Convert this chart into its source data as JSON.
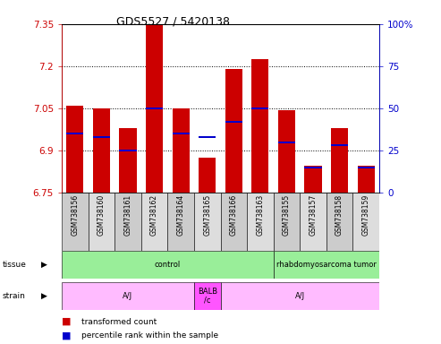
{
  "title": "GDS5527 / 5420138",
  "samples": [
    "GSM738156",
    "GSM738160",
    "GSM738161",
    "GSM738162",
    "GSM738164",
    "GSM738165",
    "GSM738166",
    "GSM738163",
    "GSM738155",
    "GSM738157",
    "GSM738158",
    "GSM738159"
  ],
  "bar_values": [
    7.06,
    7.05,
    6.98,
    7.35,
    7.05,
    6.875,
    7.19,
    7.225,
    7.045,
    6.845,
    6.98,
    6.845
  ],
  "percentile_values": [
    35,
    33,
    25,
    50,
    35,
    33,
    42,
    50,
    30,
    15,
    28,
    15
  ],
  "ymin": 6.75,
  "ymax": 7.35,
  "yticks": [
    6.75,
    6.9,
    7.05,
    7.2,
    7.35
  ],
  "ytick_labels": [
    "6.75",
    "6.9",
    "7.05",
    "7.2",
    "7.35"
  ],
  "y2ticks": [
    0,
    25,
    50,
    75,
    100
  ],
  "y2tick_labels": [
    "0",
    "25",
    "50",
    "75",
    "100%"
  ],
  "bar_color": "#cc0000",
  "percentile_color": "#0000cc",
  "bg_color": "#ffffff",
  "tissue_labels": [
    "control",
    "rhabdomyosarcoma tumor"
  ],
  "tissue_starts": [
    0,
    8
  ],
  "tissue_ends": [
    8,
    12
  ],
  "tissue_color": "#99ee99",
  "strain_data": [
    {
      "start": 0,
      "end": 5,
      "label": "A/J",
      "color": "#ffbbff"
    },
    {
      "start": 5,
      "end": 6,
      "label": "BALB\n/c",
      "color": "#ff55ff"
    },
    {
      "start": 6,
      "end": 12,
      "label": "A/J",
      "color": "#ffbbff"
    }
  ],
  "bar_color_legend": "#cc0000",
  "pct_color_legend": "#0000cc"
}
